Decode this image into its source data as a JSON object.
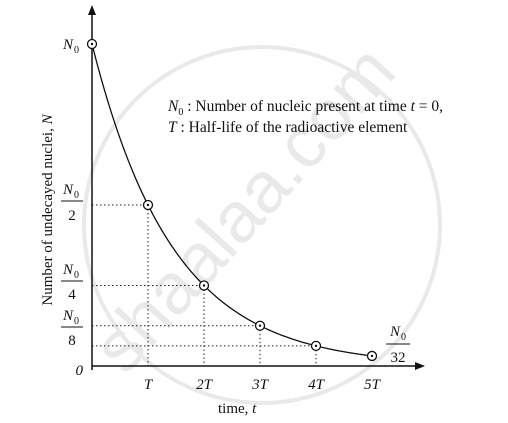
{
  "chart_data": {
    "type": "line",
    "x_unit": "T",
    "x": [
      0,
      1,
      2,
      3,
      4,
      5
    ],
    "y_fraction_of_N0": [
      1,
      0.5,
      0.25,
      0.125,
      0.0625,
      0.03125
    ],
    "xlabel": {
      "main": "time, ",
      "var": "t"
    },
    "ylabel": {
      "main": "Number of undecayed nuclei, ",
      "var": "N"
    },
    "origin_label": "0",
    "x_tick_labels": [
      "T",
      "2T",
      "3T",
      "4T",
      "5T"
    ],
    "y_labels": {
      "n0": "N",
      "n0_sub": "0",
      "half_den": "2",
      "quarter_den": "4",
      "eighth_den": "8",
      "last_den": "32"
    },
    "legend": {
      "line1_sym": "N",
      "line1_sub": "0",
      "line1_text": " : Number of nucleic present at time ",
      "line1_t": "t",
      "line1_end": " = 0,",
      "line2_sym": "T",
      "line2_text": " : Half-life of the radioactive element"
    },
    "guides": "dotted",
    "markers": "open-circle",
    "watermark": "shaalaa.com"
  }
}
